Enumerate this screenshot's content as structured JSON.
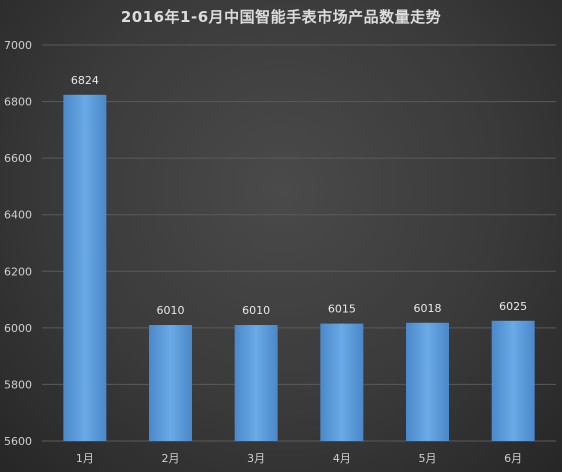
{
  "title": "2016年1-6月中国智能手表市场产品数量走势",
  "chart_data": {
    "type": "bar",
    "title": "2016年1-6月中国智能手表市场产品数量走势",
    "categories": [
      "1月",
      "2月",
      "3月",
      "4月",
      "5月",
      "6月"
    ],
    "values": [
      6824,
      6010,
      6010,
      6015,
      6018,
      6025
    ],
    "xlabel": "",
    "ylabel": "",
    "ylim": [
      5600,
      7000
    ],
    "yticks": [
      5600,
      5800,
      6000,
      6200,
      6400,
      6600,
      6800,
      7000
    ],
    "grid": true,
    "legend": "none",
    "bar_color": "#5b9bd5"
  }
}
